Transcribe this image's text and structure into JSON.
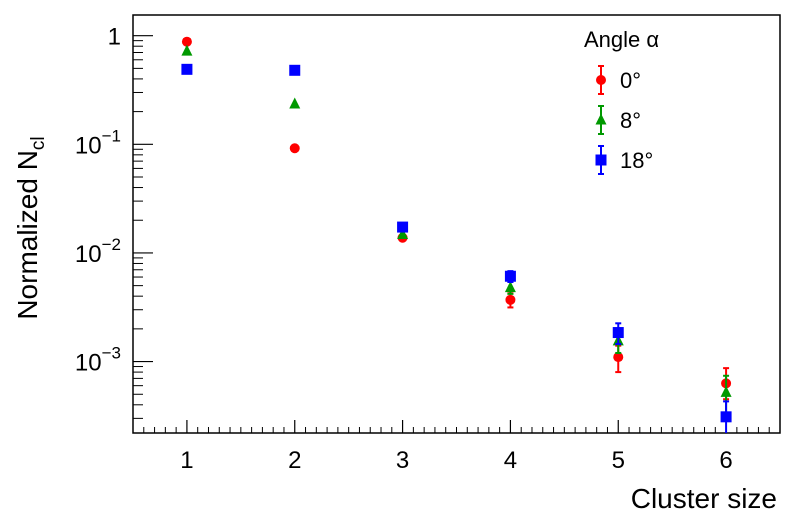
{
  "chart_data": {
    "type": "scatter",
    "xlabel": "Cluster size",
    "ylabel_main": "Normalized N",
    "ylabel_sub": "cl",
    "x_scale": "linear",
    "y_scale": "log",
    "xlim": [
      0.5,
      6.5
    ],
    "ylim": [
      0.00022,
      1.55
    ],
    "x_ticks": [
      1,
      2,
      3,
      4,
      5,
      6
    ],
    "x_tick_labels": [
      "1",
      "2",
      "3",
      "4",
      "5",
      "6"
    ],
    "y_ticks": [
      {
        "value": 1,
        "base": "1",
        "exp": ""
      },
      {
        "value": 0.1,
        "base": "10",
        "exp": "−1"
      },
      {
        "value": 0.01,
        "base": "10",
        "exp": "−2"
      },
      {
        "value": 0.001,
        "base": "10",
        "exp": "−3"
      }
    ],
    "grid": false,
    "legend": {
      "title": "Angle α",
      "placement": "top-right"
    },
    "series": [
      {
        "name": "0°",
        "color": "#ff0000",
        "marker": "circle",
        "x": [
          1,
          2,
          3,
          4,
          5,
          6
        ],
        "y": [
          0.88,
          0.092,
          0.0138,
          0.0037,
          0.0011,
          0.00063
        ],
        "err_low": [
          0,
          0,
          0,
          0.00055,
          0.0003,
          0.00018
        ],
        "err_high": [
          0,
          0,
          0,
          0.00055,
          0.0003,
          0.00024
        ]
      },
      {
        "name": "8°",
        "color": "#009900",
        "marker": "triangle",
        "x": [
          1,
          2,
          3,
          4,
          5,
          6
        ],
        "y": [
          0.72,
          0.235,
          0.0148,
          0.0048,
          0.00155,
          0.00052
        ],
        "err_low": [
          0,
          0,
          0,
          0.0006,
          0.00035,
          0.00022
        ],
        "err_high": [
          0,
          0,
          0,
          0.0006,
          0.00035,
          0.00022
        ]
      },
      {
        "name": "18°",
        "color": "#0000ff",
        "marker": "square",
        "x": [
          1,
          2,
          3,
          4,
          5,
          6
        ],
        "y": [
          0.49,
          0.48,
          0.0173,
          0.0061,
          0.00185,
          0.00031
        ],
        "err_low": [
          0,
          0,
          0,
          0.0007,
          0.0004,
          0.00012
        ],
        "err_high": [
          0,
          0,
          0,
          0.0007,
          0.0004,
          0.00012
        ]
      }
    ]
  }
}
